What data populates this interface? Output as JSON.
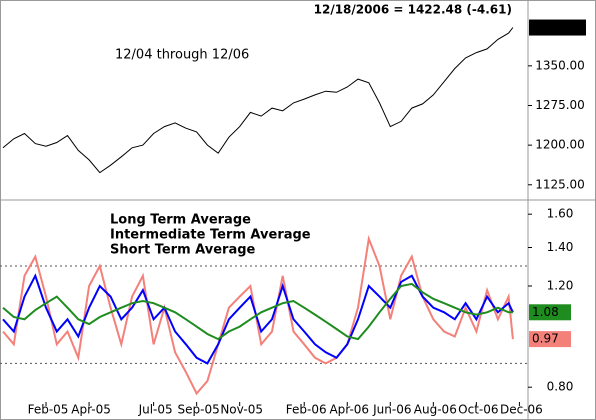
{
  "chart_data": [
    {
      "type": "line",
      "title": "12/18/2006 = 1422.48 (-4.61)",
      "annotation": "12/04 through 12/06",
      "color": "#000000",
      "x": [
        0,
        0.5,
        1,
        1.5,
        2,
        2.5,
        3,
        3.5,
        4,
        4.5,
        5,
        5.5,
        6,
        6.5,
        7,
        7.5,
        8,
        8.5,
        9,
        9.5,
        10,
        10.5,
        11,
        11.5,
        12,
        12.5,
        13,
        13.5,
        14,
        14.5,
        15,
        15.5,
        16,
        16.5,
        17,
        17.5,
        18,
        18.5,
        19,
        19.5,
        20,
        20.5,
        21,
        21.5,
        22,
        22.5,
        23,
        23.5,
        23.7
      ],
      "values": [
        1195,
        1212,
        1222,
        1203,
        1198,
        1205,
        1218,
        1190,
        1172,
        1148,
        1162,
        1178,
        1195,
        1200,
        1222,
        1235,
        1242,
        1232,
        1225,
        1200,
        1185,
        1215,
        1235,
        1262,
        1255,
        1270,
        1265,
        1280,
        1287,
        1295,
        1302,
        1300,
        1310,
        1325,
        1318,
        1280,
        1235,
        1245,
        1270,
        1278,
        1295,
        1320,
        1345,
        1365,
        1375,
        1382,
        1400,
        1412,
        1422.48
      ],
      "xlim": [
        0,
        24.4
      ],
      "ylim": [
        1100,
        1467
      ],
      "yticks": [
        {
          "value": 1125,
          "label": "1125.00"
        },
        {
          "value": 1200,
          "label": "1200.00"
        },
        {
          "value": 1275,
          "label": "1275.00"
        },
        {
          "value": 1350,
          "label": "1350.00"
        }
      ]
    },
    {
      "type": "line",
      "log_scale": true,
      "x": [
        0,
        0.5,
        1,
        1.5,
        2,
        2.5,
        3,
        3.5,
        4,
        4.5,
        5,
        5.5,
        6,
        6.5,
        7,
        7.5,
        8,
        8.5,
        9,
        9.5,
        10,
        10.5,
        11,
        11.5,
        12,
        12.5,
        13,
        13.5,
        14,
        14.5,
        15,
        15.5,
        16,
        16.5,
        17,
        17.5,
        18,
        18.5,
        19,
        19.5,
        20,
        20.5,
        21,
        21.5,
        22,
        22.5,
        23,
        23.5,
        23.7
      ],
      "series": [
        {
          "name": "Long Term Average",
          "color": "#1e8c1e",
          "values": [
            1.1,
            1.06,
            1.05,
            1.09,
            1.12,
            1.15,
            1.1,
            1.05,
            1.03,
            1.06,
            1.08,
            1.1,
            1.12,
            1.13,
            1.12,
            1.1,
            1.08,
            1.05,
            1.02,
            0.99,
            0.97,
            1.0,
            1.02,
            1.05,
            1.08,
            1.1,
            1.12,
            1.13,
            1.1,
            1.07,
            1.04,
            1.01,
            0.98,
            0.97,
            1.02,
            1.08,
            1.14,
            1.2,
            1.21,
            1.17,
            1.14,
            1.12,
            1.1,
            1.08,
            1.07,
            1.08,
            1.1,
            1.08,
            1.08
          ]
        },
        {
          "name": "Intermediate Term Average",
          "color": "#0000ff",
          "values": [
            1.05,
            1.0,
            1.15,
            1.25,
            1.1,
            1.0,
            1.05,
            0.98,
            1.1,
            1.2,
            1.15,
            1.05,
            1.1,
            1.18,
            1.05,
            1.1,
            1.0,
            0.95,
            0.9,
            0.88,
            0.95,
            1.05,
            1.1,
            1.15,
            1.0,
            1.05,
            1.2,
            1.05,
            1.0,
            0.95,
            0.92,
            0.9,
            0.95,
            1.05,
            1.2,
            1.15,
            1.1,
            1.22,
            1.25,
            1.15,
            1.1,
            1.08,
            1.05,
            1.12,
            1.05,
            1.15,
            1.08,
            1.12,
            1.08
          ]
        },
        {
          "name": "Short Term Average",
          "color": "#f4807a",
          "values": [
            1.0,
            0.95,
            1.25,
            1.35,
            1.15,
            0.95,
            1.0,
            0.9,
            1.2,
            1.3,
            1.1,
            0.95,
            1.15,
            1.25,
            0.95,
            1.1,
            0.92,
            0.85,
            0.78,
            0.82,
            0.95,
            1.1,
            1.15,
            1.2,
            0.95,
            1.0,
            1.25,
            1.0,
            0.95,
            0.9,
            0.88,
            0.9,
            0.95,
            1.1,
            1.45,
            1.3,
            1.05,
            1.25,
            1.35,
            1.15,
            1.05,
            1.0,
            0.98,
            1.1,
            1.0,
            1.18,
            1.05,
            1.15,
            0.97
          ]
        }
      ],
      "label_series": [
        0,
        2
      ],
      "reference_lines": [
        1.3,
        0.88
      ],
      "xlim": [
        0,
        24.4
      ],
      "ylim": [
        0.76,
        1.68
      ],
      "yticks": [
        {
          "value": 0.8,
          "label": "0.80"
        },
        {
          "value": 1.2,
          "label": "1.20"
        },
        {
          "value": 1.4,
          "label": "1.40"
        },
        {
          "value": 1.6,
          "label": "1.60"
        }
      ],
      "xticks": [
        {
          "value": 2,
          "label": "Feb-05"
        },
        {
          "value": 4,
          "label": "Apr-05"
        },
        {
          "value": 7,
          "label": "Jul-05"
        },
        {
          "value": 9,
          "label": "Sep-05"
        },
        {
          "value": 11,
          "label": "Nov-05"
        },
        {
          "value": 14,
          "label": "Feb-06"
        },
        {
          "value": 16,
          "label": "Apr-06"
        },
        {
          "value": 18,
          "label": "Jun-06"
        },
        {
          "value": 20,
          "label": "Aug-06"
        },
        {
          "value": 22,
          "label": "Oct-06"
        },
        {
          "value": 24,
          "label": "Dec-06"
        }
      ]
    }
  ]
}
